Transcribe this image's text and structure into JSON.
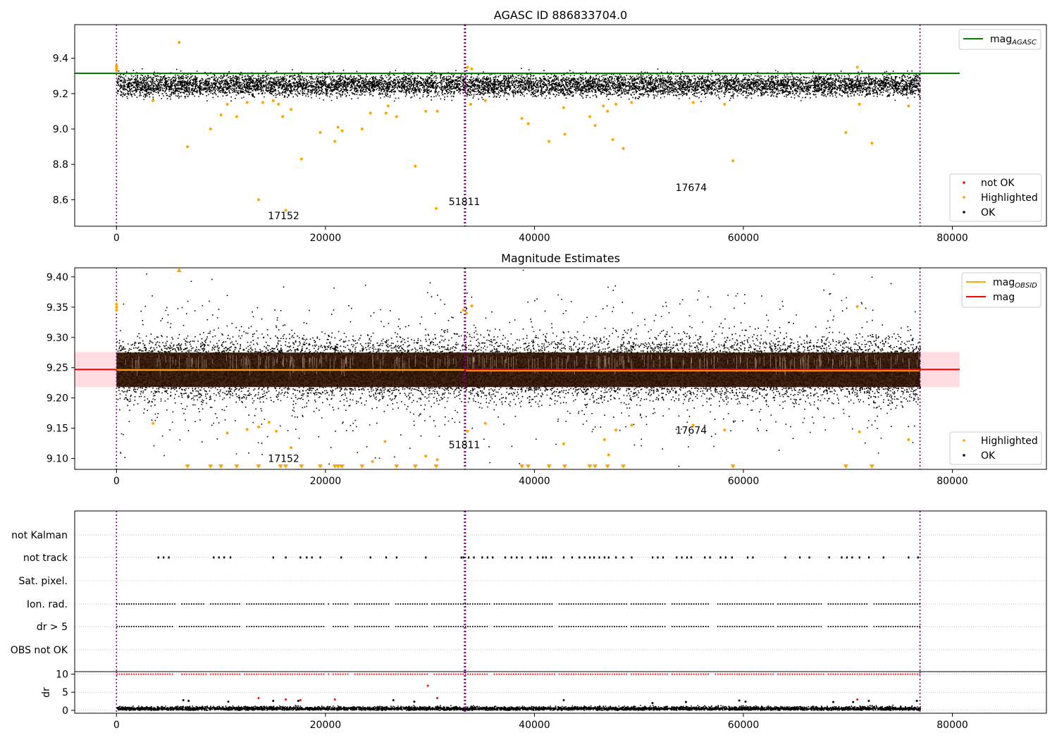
{
  "chart_data": [
    {
      "type": "scatter",
      "title": "AGASC ID 886833704.0",
      "xlabel": "",
      "ylabel": "",
      "xlim": [
        -4000,
        89000
      ],
      "ylim": [
        8.45,
        9.59
      ],
      "xticks": [
        0,
        20000,
        40000,
        60000,
        80000
      ],
      "xtick_labels": [
        "0",
        "20000",
        "40000",
        "60000",
        "80000"
      ],
      "yticks": [
        8.6,
        8.8,
        9.0,
        9.2,
        9.4
      ],
      "ytick_labels": [
        "8.6",
        "8.8",
        "9.0",
        "9.2",
        "9.4"
      ],
      "grid": false,
      "vlines": [
        0,
        33300,
        33400,
        76900
      ],
      "annotations": [
        {
          "text": "17152",
          "x": 16000,
          "y": 8.49
        },
        {
          "text": "51811",
          "x": 33300,
          "y": 8.57
        },
        {
          "text": "17674",
          "x": 55000,
          "y": 8.65
        }
      ],
      "hlines": [
        {
          "name": "mag_AGASC",
          "y": 9.315,
          "x0": -4000,
          "x1": 80700,
          "color": "#008000"
        }
      ],
      "ok_band": {
        "x0": 0,
        "x1": 76900,
        "center": 9.25,
        "half": 0.04,
        "color": "#000000"
      },
      "highlighted": {
        "color": "#ffa500",
        "x": [
          0,
          0,
          0,
          0,
          3500,
          6000,
          6800,
          9000,
          10000,
          10600,
          11500,
          12500,
          13600,
          14000,
          15000,
          15500,
          15900,
          16200,
          16700,
          17700,
          19500,
          20900,
          21200,
          21600,
          23500,
          24300,
          25800,
          26000,
          26800,
          28600,
          29600,
          30600,
          30700,
          33600,
          33900,
          34000,
          35300,
          38800,
          39400,
          41400,
          42800,
          42900,
          45300,
          45800,
          46600,
          47000,
          47500,
          47800,
          48500,
          49300,
          55200,
          58200,
          59000,
          69800,
          70900,
          71100,
          72300,
          75800
        ],
        "y": [
          9.33,
          9.34,
          9.35,
          9.36,
          9.16,
          9.49,
          8.9,
          9.0,
          9.08,
          9.14,
          9.07,
          9.15,
          8.6,
          9.15,
          9.16,
          9.14,
          9.07,
          8.54,
          9.11,
          8.83,
          8.98,
          8.93,
          9.01,
          8.99,
          9.0,
          9.09,
          9.09,
          9.13,
          9.07,
          8.79,
          9.1,
          8.55,
          9.1,
          9.35,
          9.14,
          9.34,
          9.16,
          9.06,
          9.03,
          8.93,
          9.12,
          8.97,
          9.07,
          9.02,
          9.13,
          9.1,
          8.94,
          9.14,
          8.89,
          9.15,
          9.15,
          9.14,
          8.82,
          8.98,
          9.35,
          9.14,
          8.92,
          9.13
        ]
      },
      "legends": [
        {
          "position": "upper-right",
          "entries": [
            {
              "label": "mag",
              "sub": "AGASC",
              "color": "#008000",
              "marker": "line"
            }
          ]
        },
        {
          "position": "lower-right",
          "entries": [
            {
              "label": "not OK",
              "color": "#ff0000",
              "marker": "dot"
            },
            {
              "label": "Highlighted",
              "color": "#ffa500",
              "marker": "dot"
            },
            {
              "label": "OK",
              "color": "#000000",
              "marker": "dot"
            }
          ]
        }
      ]
    },
    {
      "type": "scatter",
      "title": "Magnitude Estimates",
      "xlabel": "",
      "ylabel": "",
      "xlim": [
        -4000,
        89000
      ],
      "ylim": [
        9.082,
        9.415
      ],
      "xticks": [
        0,
        20000,
        40000,
        60000,
        80000
      ],
      "xtick_labels": [
        "0",
        "20000",
        "40000",
        "60000",
        "80000"
      ],
      "yticks": [
        9.1,
        9.15,
        9.2,
        9.25,
        9.3,
        9.35,
        9.4
      ],
      "ytick_labels": [
        "9.10",
        "9.15",
        "9.20",
        "9.25",
        "9.30",
        "9.35",
        "9.40"
      ],
      "grid": false,
      "vlines": [
        0,
        33300,
        33400,
        76900
      ],
      "annotations": [
        {
          "text": "17152",
          "x": 16000,
          "y": 9.094
        },
        {
          "text": "51811",
          "x": 33300,
          "y": 9.117
        },
        {
          "text": "17674",
          "x": 55000,
          "y": 9.141
        }
      ],
      "mag_band": {
        "x0": -4000,
        "x1": 80700,
        "y0": 9.218,
        "y1": 9.276,
        "color": "#ffc0cb"
      },
      "hlines": [
        {
          "name": "mag",
          "y": 9.247,
          "x0": -4000,
          "x1": 80700,
          "color": "#ff0000"
        },
        {
          "name": "mag_OBSID",
          "segments": [
            [
              0,
              33300,
              9.246
            ],
            [
              33300,
              76900,
              9.245
            ]
          ],
          "color": "#ffa500"
        }
      ],
      "ok_band": {
        "x0": 0,
        "x1": 76900,
        "center": 9.248,
        "half": 0.033,
        "extreme": 0.07,
        "color": "#000000"
      },
      "highlighted": {
        "color": "#ffa500",
        "x": [
          0,
          0,
          0,
          3500,
          10600,
          12500,
          13600,
          14600,
          15300,
          16700,
          21500,
          24500,
          25700,
          29600,
          30700,
          33200,
          33500,
          33600,
          34000,
          35300,
          42800,
          46700,
          47100,
          47800,
          49300,
          55200,
          58200,
          70900,
          71100,
          75800
        ],
        "y": [
          9.345,
          9.35,
          9.355,
          9.158,
          9.142,
          9.148,
          9.152,
          9.16,
          9.145,
          9.118,
          9.088,
          9.095,
          9.128,
          9.104,
          9.098,
          9.345,
          9.34,
          9.145,
          9.352,
          9.158,
          9.124,
          9.131,
          9.106,
          9.147,
          9.155,
          9.155,
          9.147,
          9.351,
          9.144,
          9.131
        ]
      },
      "clipped_low": {
        "color": "#ffa500",
        "x": [
          6800,
          9000,
          10000,
          11500,
          13600,
          15700,
          16200,
          17700,
          19500,
          20900,
          21200,
          21600,
          23500,
          26800,
          28600,
          30600,
          38800,
          39400,
          41400,
          42900,
          45300,
          45800,
          47000,
          48500,
          59000,
          69800,
          72300
        ]
      },
      "clipped_high": {
        "color": "#ffa500",
        "x": [
          6000
        ]
      },
      "legends": [
        {
          "position": "upper-right",
          "entries": [
            {
              "label": "mag",
              "sub": "OBSID",
              "color": "#ffa500",
              "marker": "line"
            },
            {
              "label": "mag",
              "sub": "",
              "color": "#ff0000",
              "marker": "line"
            }
          ]
        },
        {
          "position": "lower-right",
          "entries": [
            {
              "label": "Highlighted",
              "color": "#ffa500",
              "marker": "dot"
            },
            {
              "label": "OK",
              "color": "#000000",
              "marker": "dot"
            }
          ]
        }
      ]
    },
    {
      "type": "scatter",
      "title": "",
      "xlabel": "",
      "ylabel": "",
      "xlim": [
        -4000,
        89000
      ],
      "categories": [
        "OBS not OK",
        "dr > 5",
        "Ion. rad.",
        "Sat. pixel.",
        "not track",
        "not Kalman"
      ],
      "grid": true,
      "vlines": [
        0,
        33300,
        33400,
        76900
      ],
      "flags": {
        "not_track_x": [
          4000,
          4500,
          5000,
          9300,
          9800,
          10300,
          10900,
          15000,
          16200,
          17600,
          18200,
          18700,
          19500,
          21500,
          24300,
          25800,
          26800,
          29600,
          33000,
          33200,
          33700,
          34200,
          35000,
          35500,
          36000,
          37200,
          37800,
          38300,
          38800,
          39600,
          40300,
          40800,
          41100,
          41600,
          42800,
          43600,
          44300,
          44800,
          45300,
          45700,
          46200,
          46700,
          47100,
          47800,
          48500,
          49300,
          51300,
          51800,
          52300,
          53600,
          54100,
          54600,
          55000,
          56300,
          56800,
          57800,
          58300,
          58900,
          60400,
          60900,
          64000,
          65400,
          66300,
          68200,
          69400,
          69900,
          70400,
          71100,
          72000,
          73400,
          75800,
          76700
        ],
        "gaps_x": [
          [
            5500,
            6000
          ],
          [
            8300,
            8800
          ],
          [
            11800,
            12300
          ],
          [
            20000,
            20500
          ],
          [
            22200,
            22600
          ],
          [
            26000,
            26500
          ],
          [
            29900,
            30300
          ],
          [
            35500,
            35900
          ],
          [
            41800,
            42200
          ],
          [
            48800,
            49200
          ],
          [
            52600,
            53000
          ],
          [
            56800,
            57300
          ],
          [
            62800,
            63200
          ],
          [
            67400,
            67900
          ],
          [
            71800,
            72300
          ]
        ]
      },
      "legends": []
    },
    {
      "type": "scatter",
      "title": "",
      "xlabel": "",
      "ylabel": "dr",
      "xlim": [
        -4000,
        89000
      ],
      "ylim": [
        -0.8,
        10.7
      ],
      "xticks": [
        0,
        20000,
        40000,
        60000,
        80000
      ],
      "xtick_labels": [
        "0",
        "20000",
        "40000",
        "60000",
        "80000"
      ],
      "yticks": [
        0,
        5,
        10
      ],
      "ytick_labels": [
        "0",
        "5",
        "10"
      ],
      "grid": true,
      "vlines": [
        0,
        33300,
        33400,
        76900
      ],
      "dr_band": {
        "x0": 0,
        "x1": 76900,
        "y0": 0.1,
        "y1": 1.1,
        "color": "#000000"
      },
      "dr_clipped": {
        "y": 10,
        "color": "#ff0000"
      },
      "outliers": {
        "not_ok": {
          "color": "#ff0000",
          "x": [
            13600,
            16200,
            17600,
            20900,
            29800,
            30700,
            70900
          ],
          "y": [
            3.4,
            3.0,
            2.8,
            3.0,
            6.8,
            3.4,
            3.0
          ]
        },
        "ok": {
          "color": "#000000",
          "x": [
            6400,
            6900,
            10700,
            15000,
            17400,
            26500,
            28500,
            42800,
            51300,
            54500,
            59600,
            60200,
            68600,
            70500,
            72000,
            76600
          ],
          "y": [
            2.8,
            2.6,
            2.4,
            2.6,
            2.6,
            2.8,
            2.4,
            2.8,
            2.0,
            2.3,
            2.7,
            2.4,
            2.3,
            2.3,
            2.6,
            2.6
          ]
        }
      },
      "legends": []
    }
  ]
}
